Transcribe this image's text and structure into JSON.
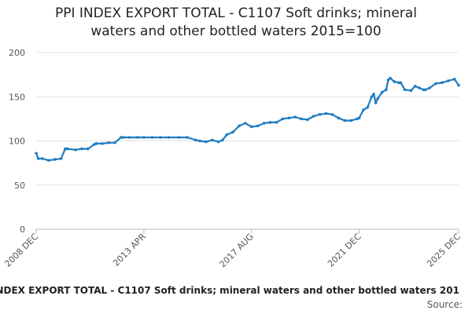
{
  "title_lines": [
    "PPI INDEX EXPORT TOTAL - C1107 Soft drinks; mineral",
    "waters and other bottled waters 2015=100"
  ],
  "footer": {
    "caption": "INDEX EXPORT TOTAL - C1107 Soft drinks; mineral waters and other bottled waters 201",
    "source_label": "Source:"
  },
  "chart_data": {
    "type": "line",
    "title": "PPI INDEX EXPORT TOTAL - C1107 Soft drinks; mineral waters and other bottled waters 2015=100",
    "xlabel": "",
    "ylabel": "",
    "ylim": [
      0,
      200
    ],
    "yticks": [
      0,
      50,
      100,
      150,
      200
    ],
    "xtick_labels": [
      "2008 DEC",
      "2013 APR",
      "2017 AUG",
      "2021 DEC",
      "2025 DEC"
    ],
    "x_range": [
      "2008 DEC",
      "2025 DEC"
    ],
    "grid": "horizontal",
    "line_color": "#1f7cc1",
    "series": [
      {
        "x": [
          "2008 DEC",
          "2009 JAN",
          "2009 MAR",
          "2009 JUN",
          "2009 SEP",
          "2009 DEC",
          "2010 FEB",
          "2010 MAR",
          "2010 JUL",
          "2010 OCT",
          "2011 JAN",
          "2011 APR",
          "2011 MAY",
          "2011 AUG",
          "2011 NOV",
          "2012 FEB",
          "2012 MAY",
          "2012 JUN",
          "2012 SEP",
          "2013 JAN",
          "2013 APR",
          "2013 AUG",
          "2013 DEC",
          "2014 APR",
          "2014 SEP",
          "2015 JAN",
          "2015 MAY",
          "2015 JUL",
          "2015 OCT",
          "2016 JAN",
          "2016 APR",
          "2016 JUN",
          "2016 AUG",
          "2016 NOV",
          "2017 FEB",
          "2017 MAY",
          "2017 AUG",
          "2017 NOV",
          "2018 FEB",
          "2018 MAY",
          "2018 AUG",
          "2018 NOV",
          "2019 FEB",
          "2019 MAY",
          "2019 AUG",
          "2019 NOV",
          "2020 FEB",
          "2020 MAY",
          "2020 AUG",
          "2020 NOV",
          "2021 FEB",
          "2021 MAY",
          "2021 AUG",
          "2021 NOV",
          "2021 DEC",
          "2022 FEB",
          "2022 APR",
          "2022 JUN",
          "2022 JUL",
          "2022 AUG",
          "2022 SEP",
          "2022 NOV",
          "2023 JAN",
          "2023 FEB",
          "2023 MAR",
          "2023 MAY",
          "2023 JUL",
          "2023 AUG",
          "2023 OCT",
          "2024 JAN",
          "2024 MAR",
          "2024 MAY",
          "2024 JUL",
          "2024 AUG",
          "2024 OCT",
          "2025 JAN",
          "2025 APR",
          "2025 JUL",
          "2025 OCT",
          "2025 DEC"
        ],
        "values": [
          86,
          80,
          80,
          78,
          79,
          80,
          91,
          91,
          90,
          91,
          91,
          96,
          97,
          97,
          98,
          98,
          104,
          104,
          104,
          104,
          104,
          104,
          104,
          104,
          104,
          104,
          101,
          100,
          99,
          101,
          99,
          101,
          107,
          110,
          117,
          120,
          116,
          117,
          120,
          121,
          121,
          125,
          126,
          127,
          125,
          124,
          128,
          130,
          131,
          130,
          126,
          123,
          123,
          125,
          126,
          135,
          138,
          150,
          153,
          143,
          148,
          155,
          158,
          169,
          171,
          167,
          166,
          166,
          158,
          157,
          162,
          160,
          158,
          158,
          160,
          165,
          166,
          168,
          170,
          163
        ]
      }
    ]
  }
}
